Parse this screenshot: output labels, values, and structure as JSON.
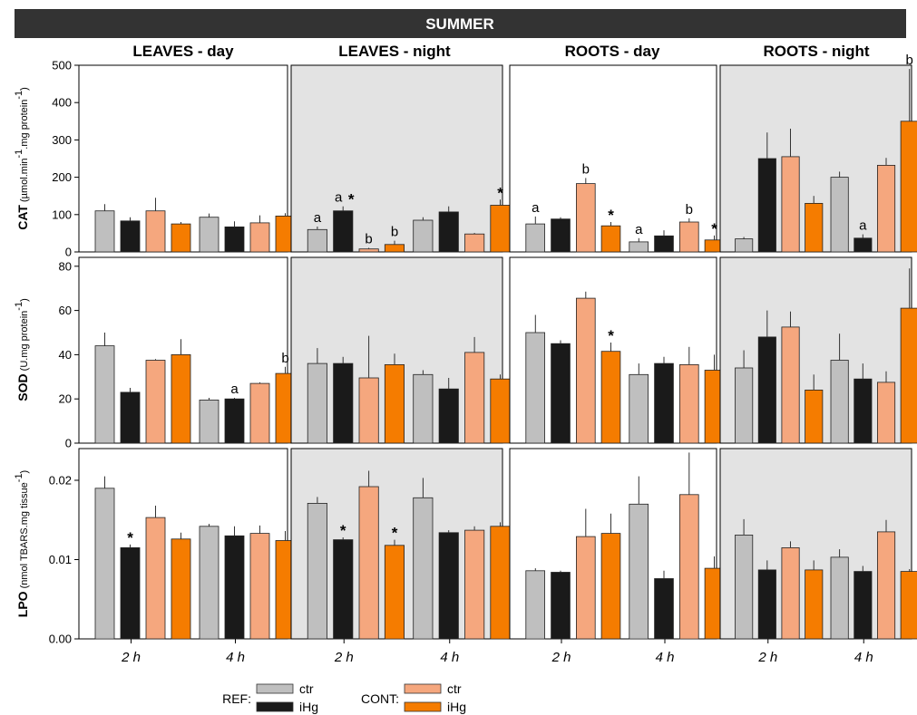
{
  "banner": {
    "title": "SUMMER"
  },
  "columns": [
    "LEAVES - day",
    "LEAVES - night",
    "ROOTS - day",
    "ROOTS - night"
  ],
  "x_ticks": [
    "2 h",
    "4 h"
  ],
  "legend": {
    "groups": [
      {
        "label": "REF:",
        "entries": [
          {
            "label": "ctr",
            "color": "#bfbfbf"
          },
          {
            "label": "iHg",
            "color": "#1a1a1a"
          }
        ]
      },
      {
        "label": "CONT:",
        "entries": [
          {
            "label": "ctr",
            "color": "#f5a77e"
          },
          {
            "label": "iHg",
            "color": "#f57c00"
          }
        ]
      }
    ]
  },
  "chart_data": {
    "type": "bar",
    "series_names": [
      "REF ctr",
      "REF iHg",
      "CONT ctr",
      "CONT iHg"
    ],
    "series_colors": [
      "#bfbfbf",
      "#1a1a1a",
      "#f5a77e",
      "#f57c00"
    ],
    "night_background": "#e3e3e3",
    "rows": [
      {
        "key": "CAT",
        "label_bold": "CAT",
        "label_unit_pre": "(µmol.min",
        "label_sup1": "-1",
        "label_unit_mid": ".mg protein",
        "label_sup2": "-1",
        "label_unit_post": ")",
        "ylim": [
          0,
          500
        ],
        "yticks": [
          "0",
          "100",
          "200",
          "300",
          "400",
          "500"
        ],
        "ytick_values": [
          0,
          100,
          200,
          300,
          400,
          500
        ],
        "panels": [
          {
            "groups": [
              {
                "v": [
                  110,
                  83,
                  110,
                  75
                ],
                "e": [
                  18,
                  10,
                  35,
                  5
                ],
                "a": [
                  "",
                  "",
                  "",
                  ""
                ]
              },
              {
                "v": [
                  93,
                  67,
                  78,
                  96
                ],
                "e": [
                  10,
                  15,
                  20,
                  8
                ],
                "a": [
                  "",
                  "",
                  "",
                  ""
                ]
              }
            ]
          },
          {
            "groups": [
              {
                "v": [
                  60,
                  110,
                  8,
                  20
                ],
                "e": [
                  8,
                  12,
                  3,
                  10
                ],
                "a": [
                  "a",
                  "a*",
                  "b",
                  "b"
                ]
              },
              {
                "v": [
                  85,
                  107,
                  48,
                  125
                ],
                "e": [
                  8,
                  15,
                  3,
                  15
                ],
                "a": [
                  "",
                  "",
                  "",
                  "*"
                ]
              }
            ]
          },
          {
            "groups": [
              {
                "v": [
                  75,
                  88,
                  183,
                  70
                ],
                "e": [
                  20,
                  5,
                  15,
                  10
                ],
                "a": [
                  "a",
                  "",
                  "b",
                  "*"
                ]
              },
              {
                "v": [
                  27,
                  43,
                  80,
                  32
                ],
                "e": [
                  10,
                  15,
                  10,
                  12
                ],
                "a": [
                  "a",
                  "",
                  "b",
                  "*"
                ]
              }
            ]
          },
          {
            "groups": [
              {
                "v": [
                  35,
                  250,
                  255,
                  130
                ],
                "e": [
                  5,
                  70,
                  75,
                  20
                ],
                "a": [
                  "",
                  "",
                  "",
                  ""
                ]
              },
              {
                "v": [
                  200,
                  37,
                  232,
                  350
                ],
                "e": [
                  15,
                  10,
                  20,
                  140
                ],
                "a": [
                  "",
                  "a",
                  "",
                  "b"
                ]
              }
            ]
          }
        ]
      },
      {
        "key": "SOD",
        "label_bold": "SOD",
        "label_unit_pre": "(U.mg protein",
        "label_sup1": "-1",
        "label_unit_mid": "",
        "label_sup2": "",
        "label_unit_post": ")",
        "ylim": [
          0,
          84
        ],
        "yticks": [
          "0",
          "20",
          "40",
          "60",
          "80"
        ],
        "ytick_values": [
          0,
          20,
          40,
          60,
          80
        ],
        "panels": [
          {
            "groups": [
              {
                "v": [
                  44,
                  23,
                  37.5,
                  40
                ],
                "e": [
                  6,
                  2,
                  0.5,
                  7
                ],
                "a": [
                  "",
                  "",
                  "",
                  ""
                ]
              },
              {
                "v": [
                  19.5,
                  20,
                  27,
                  31.5
                ],
                "e": [
                  1,
                  0.5,
                  0.5,
                  3
                ],
                "a": [
                  "",
                  "a",
                  "",
                  "b"
                ]
              }
            ]
          },
          {
            "groups": [
              {
                "v": [
                  36,
                  36,
                  29.5,
                  35.5
                ],
                "e": [
                  7,
                  3,
                  19,
                  5
                ],
                "a": [
                  "",
                  "",
                  "",
                  ""
                ]
              },
              {
                "v": [
                  31,
                  24.5,
                  41,
                  29
                ],
                "e": [
                  2,
                  5,
                  7,
                  2
                ],
                "a": [
                  "",
                  "",
                  "",
                  ""
                ]
              }
            ]
          },
          {
            "groups": [
              {
                "v": [
                  50,
                  45,
                  65.5,
                  41.5
                ],
                "e": [
                  8,
                  1.5,
                  3,
                  4
                ],
                "a": [
                  "",
                  "",
                  "",
                  "*"
                ]
              },
              {
                "v": [
                  31,
                  36,
                  35.5,
                  33
                ],
                "e": [
                  5,
                  3,
                  8,
                  7
                ],
                "a": [
                  "",
                  "",
                  "",
                  ""
                ]
              }
            ]
          },
          {
            "groups": [
              {
                "v": [
                  34,
                  48,
                  52.5,
                  24
                ],
                "e": [
                  8,
                  12,
                  7,
                  7
                ],
                "a": [
                  "",
                  "",
                  "",
                  ""
                ]
              },
              {
                "v": [
                  37.5,
                  29,
                  27.5,
                  61
                ],
                "e": [
                  12,
                  7,
                  5,
                  18
                ],
                "a": [
                  "",
                  "",
                  "",
                  ""
                ]
              }
            ]
          }
        ]
      },
      {
        "key": "LPO",
        "label_bold": "LPO",
        "label_unit_pre": "(nmol TBARS.mg tissue",
        "label_sup1": "-1",
        "label_unit_mid": "",
        "label_sup2": "",
        "label_unit_post": ")",
        "ylim": [
          0,
          0.024
        ],
        "yticks": [
          "0.00",
          "0.01",
          "0.02"
        ],
        "ytick_values": [
          0,
          0.01,
          0.02
        ],
        "panels": [
          {
            "groups": [
              {
                "v": [
                  0.019,
                  0.0115,
                  0.0153,
                  0.0126
                ],
                "e": [
                  0.0015,
                  0.0004,
                  0.0015,
                  0.0008
                ],
                "a": [
                  "",
                  "*",
                  "",
                  ""
                ]
              },
              {
                "v": [
                  0.0142,
                  0.013,
                  0.0133,
                  0.0124
                ],
                "e": [
                  0.0003,
                  0.0012,
                  0.001,
                  0.0012
                ],
                "a": [
                  "",
                  "",
                  "",
                  ""
                ]
              }
            ]
          },
          {
            "groups": [
              {
                "v": [
                  0.0171,
                  0.0125,
                  0.0192,
                  0.0118
                ],
                "e": [
                  0.0008,
                  0.0003,
                  0.002,
                  0.0007
                ],
                "a": [
                  "",
                  "*",
                  "",
                  "*"
                ]
              },
              {
                "v": [
                  0.0178,
                  0.0134,
                  0.0137,
                  0.0142
                ],
                "e": [
                  0.0025,
                  0.0003,
                  0.0005,
                  0.0005
                ],
                "a": [
                  "",
                  "",
                  "",
                  ""
                ]
              }
            ]
          },
          {
            "groups": [
              {
                "v": [
                  0.0086,
                  0.0084,
                  0.0129,
                  0.0133
                ],
                "e": [
                  0.0003,
                  0.0002,
                  0.0035,
                  0.0025
                ],
                "a": [
                  "",
                  "",
                  "",
                  ""
                ]
              },
              {
                "v": [
                  0.017,
                  0.0076,
                  0.0182,
                  0.0089
                ],
                "e": [
                  0.0035,
                  0.001,
                  0.0053,
                  0.0015
                ],
                "a": [
                  "",
                  "",
                  "",
                  ""
                ]
              }
            ]
          },
          {
            "groups": [
              {
                "v": [
                  0.0131,
                  0.0087,
                  0.0115,
                  0.0087
                ],
                "e": [
                  0.002,
                  0.0012,
                  0.0008,
                  0.0012
                ],
                "a": [
                  "",
                  "",
                  "",
                  ""
                ]
              },
              {
                "v": [
                  0.0103,
                  0.0085,
                  0.0135,
                  0.0085
                ],
                "e": [
                  0.001,
                  0.0007,
                  0.0015,
                  0.0003
                ],
                "a": [
                  "",
                  "",
                  "",
                  ""
                ]
              }
            ]
          }
        ]
      }
    ]
  }
}
